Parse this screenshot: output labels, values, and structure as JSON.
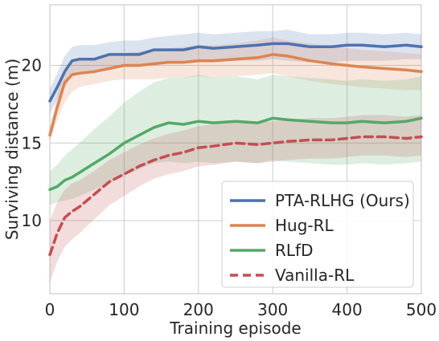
{
  "chart_data": {
    "type": "line",
    "xlabel": "Training episode",
    "ylabel": "Surviving distance (m)",
    "xlim": [
      0,
      500
    ],
    "ylim": [
      5.3,
      23.9
    ],
    "x_ticks": [
      0,
      100,
      200,
      300,
      400,
      500
    ],
    "y_ticks": [
      10,
      15,
      20
    ],
    "grid": true,
    "legend_position": "lower-right",
    "series": [
      {
        "name": "PTA-RLHG (Ours)",
        "color": "#4c72b0",
        "style": "solid",
        "x": [
          0,
          10,
          20,
          30,
          40,
          60,
          80,
          100,
          120,
          140,
          160,
          180,
          200,
          220,
          250,
          280,
          300,
          320,
          350,
          380,
          400,
          420,
          450,
          480,
          500
        ],
        "y": [
          17.7,
          18.6,
          19.6,
          20.3,
          20.4,
          20.4,
          20.7,
          20.7,
          20.7,
          21.0,
          21.0,
          21.0,
          21.2,
          21.1,
          21.2,
          21.3,
          21.4,
          21.4,
          21.2,
          21.2,
          21.3,
          21.3,
          21.2,
          21.3,
          21.2
        ],
        "lower": [
          16.9,
          17.8,
          18.6,
          19.4,
          19.6,
          19.7,
          19.9,
          19.9,
          19.9,
          20.1,
          20.1,
          20.1,
          20.3,
          20.2,
          20.3,
          20.3,
          20.4,
          20.3,
          20.2,
          20.2,
          20.3,
          20.3,
          20.3,
          20.4,
          20.4
        ],
        "upper": [
          18.5,
          19.5,
          20.6,
          21.2,
          21.3,
          21.3,
          21.5,
          21.6,
          21.6,
          21.8,
          21.9,
          22.0,
          22.1,
          22.0,
          22.1,
          22.2,
          22.2,
          22.3,
          22.0,
          22.0,
          22.1,
          22.1,
          22.0,
          22.1,
          22.0
        ]
      },
      {
        "name": "Hug-RL",
        "color": "#dd8452",
        "style": "solid",
        "x": [
          0,
          10,
          20,
          30,
          40,
          60,
          80,
          100,
          120,
          140,
          160,
          180,
          200,
          220,
          250,
          280,
          300,
          320,
          350,
          380,
          400,
          420,
          450,
          480,
          500
        ],
        "y": [
          15.5,
          17.3,
          18.9,
          19.4,
          19.5,
          19.6,
          19.8,
          20.0,
          20.0,
          20.1,
          20.2,
          20.2,
          20.3,
          20.3,
          20.4,
          20.5,
          20.7,
          20.6,
          20.3,
          20.1,
          20.0,
          19.9,
          19.8,
          19.7,
          19.6
        ],
        "lower": [
          15.1,
          16.5,
          17.6,
          18.3,
          18.6,
          18.8,
          19.0,
          19.1,
          19.1,
          19.1,
          19.2,
          19.2,
          19.3,
          19.2,
          19.3,
          19.4,
          19.5,
          19.3,
          19.0,
          18.8,
          18.7,
          18.6,
          18.5,
          18.4,
          18.4
        ],
        "upper": [
          15.9,
          18.1,
          19.9,
          20.4,
          20.4,
          20.5,
          20.6,
          20.8,
          20.9,
          21.0,
          21.1,
          21.2,
          21.3,
          21.3,
          21.4,
          21.6,
          21.8,
          21.6,
          21.4,
          21.2,
          21.1,
          21.0,
          20.9,
          20.8,
          20.7
        ]
      },
      {
        "name": "RLfD",
        "color": "#55a868",
        "style": "solid",
        "x": [
          0,
          10,
          20,
          30,
          40,
          60,
          80,
          100,
          120,
          140,
          160,
          180,
          200,
          220,
          250,
          280,
          300,
          320,
          350,
          380,
          400,
          420,
          450,
          480,
          500
        ],
        "y": [
          12.0,
          12.2,
          12.6,
          12.8,
          13.1,
          13.7,
          14.3,
          15.0,
          15.5,
          16.0,
          16.3,
          16.2,
          16.4,
          16.3,
          16.4,
          16.3,
          16.6,
          16.5,
          16.4,
          16.3,
          16.3,
          16.4,
          16.3,
          16.4,
          16.6
        ],
        "lower": [
          11.0,
          11.2,
          11.3,
          11.4,
          11.6,
          12.0,
          12.4,
          12.9,
          13.3,
          13.7,
          13.8,
          13.7,
          13.8,
          13.7,
          13.8,
          13.7,
          13.9,
          13.8,
          13.7,
          13.6,
          13.6,
          13.7,
          13.6,
          13.7,
          13.8
        ],
        "upper": [
          13.2,
          13.6,
          14.2,
          14.6,
          15.0,
          15.9,
          16.7,
          17.6,
          18.3,
          18.9,
          19.2,
          19.2,
          19.4,
          19.2,
          19.3,
          19.1,
          19.4,
          19.3,
          19.2,
          19.1,
          19.0,
          19.1,
          19.0,
          19.1,
          19.3
        ]
      },
      {
        "name": "Vanilla-RL",
        "color": "#c44e52",
        "style": "dashed",
        "x": [
          0,
          10,
          20,
          30,
          40,
          60,
          80,
          100,
          120,
          140,
          160,
          180,
          200,
          220,
          250,
          280,
          300,
          320,
          350,
          380,
          400,
          420,
          450,
          480,
          500
        ],
        "y": [
          7.8,
          9.2,
          10.2,
          10.6,
          10.9,
          11.7,
          12.5,
          13.0,
          13.5,
          13.9,
          14.2,
          14.4,
          14.7,
          14.8,
          15.0,
          14.9,
          15.0,
          15.1,
          15.2,
          15.2,
          15.3,
          15.4,
          15.4,
          15.3,
          15.4
        ],
        "lower": [
          6.0,
          7.4,
          8.3,
          8.8,
          9.2,
          10.1,
          11.0,
          11.6,
          12.2,
          12.7,
          13.0,
          13.2,
          13.5,
          13.6,
          13.8,
          13.7,
          13.8,
          13.9,
          14.0,
          14.0,
          14.1,
          14.2,
          14.2,
          14.1,
          14.2
        ],
        "upper": [
          10.0,
          11.2,
          12.0,
          12.4,
          12.6,
          13.2,
          13.9,
          14.4,
          14.9,
          15.3,
          15.6,
          15.8,
          16.1,
          16.2,
          16.4,
          16.3,
          16.4,
          16.5,
          16.6,
          16.6,
          16.7,
          16.8,
          16.8,
          16.7,
          16.8
        ]
      }
    ]
  }
}
